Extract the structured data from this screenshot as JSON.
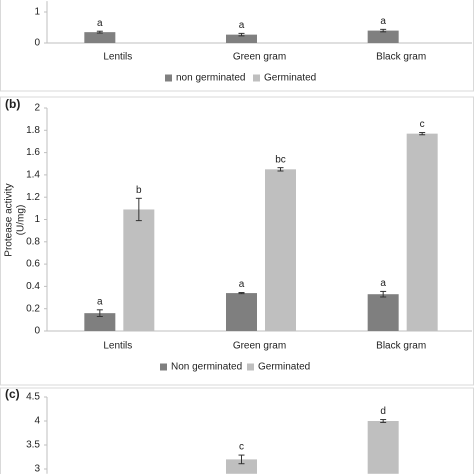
{
  "chart_data": [
    {
      "type": "bar",
      "panel_label": null,
      "categories": [
        "Lentils",
        "Green gram",
        "Black gram"
      ],
      "series": [
        {
          "name": "non germinated",
          "color": "#808080",
          "values": [
            0.35,
            0.27,
            0.4
          ],
          "errors": [
            0.03,
            0.04,
            0.04
          ],
          "letters": [
            "a",
            "a",
            "a"
          ]
        },
        {
          "name": "Germinated",
          "color": "#bfbfbf",
          "values": [
            null,
            null,
            null
          ],
          "errors": [
            null,
            null,
            null
          ],
          "letters": [
            null,
            null,
            null
          ]
        }
      ],
      "ylim": [
        0,
        1.35
      ],
      "yticks": [
        0,
        1
      ]
    },
    {
      "type": "bar",
      "panel_label": "(b)",
      "ylabel": [
        "Protease activity",
        "(U/mg)"
      ],
      "categories": [
        "Lentils",
        "Green gram",
        "Black gram"
      ],
      "series": [
        {
          "name": "Non germinated",
          "color": "#7f7f7f",
          "values": [
            0.16,
            0.34,
            0.33
          ],
          "errors": [
            0.03,
            0.005,
            0.025
          ],
          "letters": [
            "a",
            "a",
            "a"
          ]
        },
        {
          "name": "Germinated",
          "color": "#bfbfbf",
          "values": [
            1.09,
            1.45,
            1.77
          ],
          "errors": [
            0.1,
            0.015,
            0.01
          ],
          "letters": [
            "b",
            "bc",
            "c"
          ]
        }
      ],
      "ylim": [
        0,
        2
      ],
      "yticks": [
        0,
        0.2,
        0.4,
        0.6,
        0.8,
        1,
        1.2,
        1.4,
        1.6,
        1.8,
        2
      ]
    },
    {
      "type": "bar",
      "panel_label": "(c)",
      "categories": [
        null,
        null,
        null
      ],
      "series": [
        {
          "name": null,
          "color": "#bfbfbf",
          "values": [
            null,
            3.2,
            4.0
          ],
          "errors": [
            null,
            0.09,
            0.03
          ],
          "letters": [
            null,
            "c",
            "d"
          ]
        }
      ],
      "ylim": [
        2.9,
        4.5
      ],
      "yticks": [
        3,
        3.5,
        4,
        4.5
      ]
    }
  ]
}
